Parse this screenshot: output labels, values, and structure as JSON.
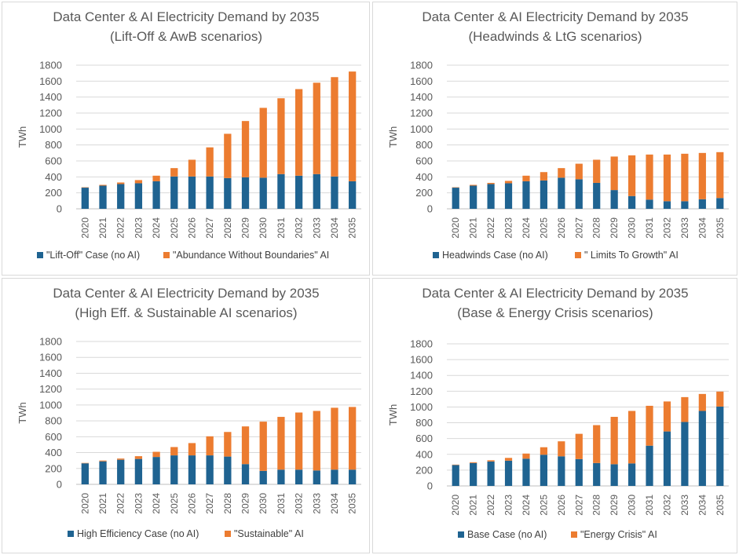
{
  "colors": {
    "base": "#1f6391",
    "ai": "#ec7c30",
    "grid": "#d9d9d9",
    "text": "#595959"
  },
  "chart_data": [
    {
      "type": "bar",
      "stacked": true,
      "title_line1": "Data Center & AI Electricity Demand by 2035",
      "title_line2": "(Lift-Off & AwB scenarios)",
      "xlabel": "",
      "ylabel": "TWh",
      "ylim": [
        0,
        1800
      ],
      "yticks": [
        0,
        200,
        400,
        600,
        800,
        1000,
        1200,
        1400,
        1600,
        1800
      ],
      "grid": true,
      "legend": "bottom",
      "categories": [
        "2020",
        "2021",
        "2022",
        "2023",
        "2024",
        "2025",
        "2026",
        "2027",
        "2028",
        "2029",
        "2030",
        "2031",
        "2032",
        "2033",
        "2034",
        "2035"
      ],
      "series": [
        {
          "name": "\"Lift-Off\" Case (no AI)",
          "values": [
            265,
            290,
            310,
            320,
            345,
            405,
            405,
            405,
            385,
            395,
            390,
            435,
            415,
            435,
            405,
            345
          ]
        },
        {
          "name": "\"Abundance Without Boundaries\" AI",
          "values": [
            5,
            10,
            20,
            40,
            70,
            105,
            210,
            365,
            555,
            705,
            875,
            950,
            1085,
            1145,
            1245,
            1375
          ]
        }
      ]
    },
    {
      "type": "bar",
      "stacked": true,
      "title_line1": "Data Center & AI Electricity Demand by 2035",
      "title_line2": "(Headwinds & LtG scenarios)",
      "xlabel": "",
      "ylabel": "TWh",
      "ylim": [
        0,
        1800
      ],
      "yticks": [
        0,
        200,
        400,
        600,
        800,
        1000,
        1200,
        1400,
        1600,
        1800
      ],
      "grid": true,
      "legend": "bottom",
      "categories": [
        "2020",
        "2021",
        "2022",
        "2023",
        "2024",
        "2025",
        "2026",
        "2027",
        "2028",
        "2029",
        "2030",
        "2031",
        "2032",
        "2033",
        "2034",
        "2035"
      ],
      "series": [
        {
          "name": "Headwinds Case (no AI)",
          "values": [
            265,
            290,
            310,
            320,
            345,
            355,
            390,
            370,
            325,
            235,
            160,
            115,
            95,
            95,
            120,
            135
          ]
        },
        {
          "name": "\" Limits To Growth\" AI",
          "values": [
            5,
            10,
            15,
            30,
            70,
            105,
            120,
            195,
            290,
            420,
            510,
            565,
            585,
            595,
            580,
            575
          ]
        }
      ]
    },
    {
      "type": "bar",
      "stacked": true,
      "title_line1": "Data Center & AI Electricity Demand by 2035",
      "title_line2": "(High Eff. & Sustainable AI scenarios)",
      "xlabel": "",
      "ylabel": "TWh",
      "ylim": [
        0,
        1800
      ],
      "yticks": [
        0,
        200,
        400,
        600,
        800,
        1000,
        1200,
        1400,
        1600,
        1800
      ],
      "grid": true,
      "legend": "bottom",
      "categories": [
        "2020",
        "2021",
        "2022",
        "2023",
        "2024",
        "2025",
        "2026",
        "2027",
        "2028",
        "2029",
        "2030",
        "2031",
        "2032",
        "2033",
        "2034",
        "2035"
      ],
      "series": [
        {
          "name": "High Efficiency Case (no AI)",
          "values": [
            265,
            290,
            310,
            320,
            345,
            365,
            365,
            365,
            350,
            255,
            170,
            185,
            185,
            175,
            185,
            185
          ]
        },
        {
          "name": "\"Sustainable\" AI",
          "values": [
            5,
            10,
            15,
            35,
            65,
            105,
            155,
            240,
            310,
            475,
            620,
            665,
            720,
            750,
            780,
            790
          ]
        }
      ]
    },
    {
      "type": "bar",
      "stacked": true,
      "title_line1": "Data Center & AI Electricity Demand by 2035",
      "title_line2": "(Base & Energy Crisis scenarios)",
      "xlabel": "",
      "ylabel": "TWh",
      "ylim": [
        0,
        1800
      ],
      "yticks": [
        0,
        200,
        400,
        600,
        800,
        1000,
        1200,
        1400,
        1600,
        1800
      ],
      "grid": true,
      "legend": "bottom",
      "categories": [
        "2020",
        "2021",
        "2022",
        "2023",
        "2024",
        "2025",
        "2026",
        "2027",
        "2028",
        "2029",
        "2030",
        "2031",
        "2032",
        "2033",
        "2034",
        "2035"
      ],
      "series": [
        {
          "name": "Base Case (no AI)",
          "values": [
            265,
            290,
            310,
            320,
            345,
            395,
            375,
            340,
            290,
            275,
            285,
            510,
            690,
            810,
            950,
            1005
          ]
        },
        {
          "name": "\"Energy Crisis\" AI",
          "values": [
            5,
            10,
            15,
            35,
            65,
            95,
            190,
            320,
            480,
            600,
            665,
            505,
            380,
            315,
            215,
            190
          ]
        }
      ]
    }
  ]
}
